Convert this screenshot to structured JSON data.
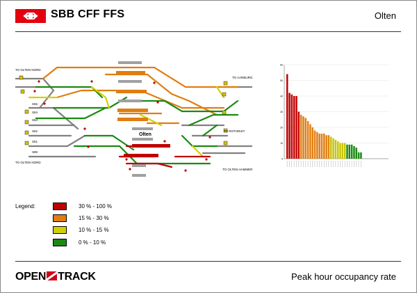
{
  "header": {
    "brand": "SBB CFF FFS",
    "station": "Olten"
  },
  "footer": {
    "logo_left": "OPEN",
    "logo_right": "TRACK",
    "title": "Peak hour occupancy rate"
  },
  "legend": {
    "title": "Legend:",
    "items": [
      {
        "label": "30 % - 100 %",
        "color": "#c00000"
      },
      {
        "label": "15 % - 30 %",
        "color": "#e07d10"
      },
      {
        "label": "10 % - 15 %",
        "color": "#d4d000"
      },
      {
        "label": "0 % - 10 %",
        "color": "#1a8a10"
      }
    ]
  },
  "network": {
    "labels": {
      "to_olten_nord_top": "TO OLTEN NORD",
      "to_olten_nord_bottom": "TO OLTEN NORD",
      "to_aarburg": "TO AARBURG",
      "to_rothrist": "TO ROTHRIST",
      "to_olten_hammer": "TO OLTEN HAMMER",
      "station": "Olten",
      "s55": "S55",
      "s54": "S54",
      "s53": "S53",
      "s52": "S52",
      "s51": "S51",
      "s89": "S89"
    }
  },
  "chart_data": {
    "type": "bar",
    "yticks": [
      0,
      10,
      20,
      30,
      40,
      50,
      60
    ],
    "ylim": [
      0,
      60
    ],
    "values": [
      54,
      42,
      41,
      40,
      40,
      30,
      28,
      27,
      26,
      24,
      22,
      20,
      18,
      17,
      16,
      16,
      16,
      15,
      15,
      14,
      13,
      12,
      11,
      10,
      10,
      10,
      9,
      9,
      9,
      8,
      7,
      4,
      4
    ],
    "colors": {
      "high": "#c00000",
      "mid": "#e07d10",
      "low": "#c8c400",
      "min": "#1a8a10"
    }
  }
}
